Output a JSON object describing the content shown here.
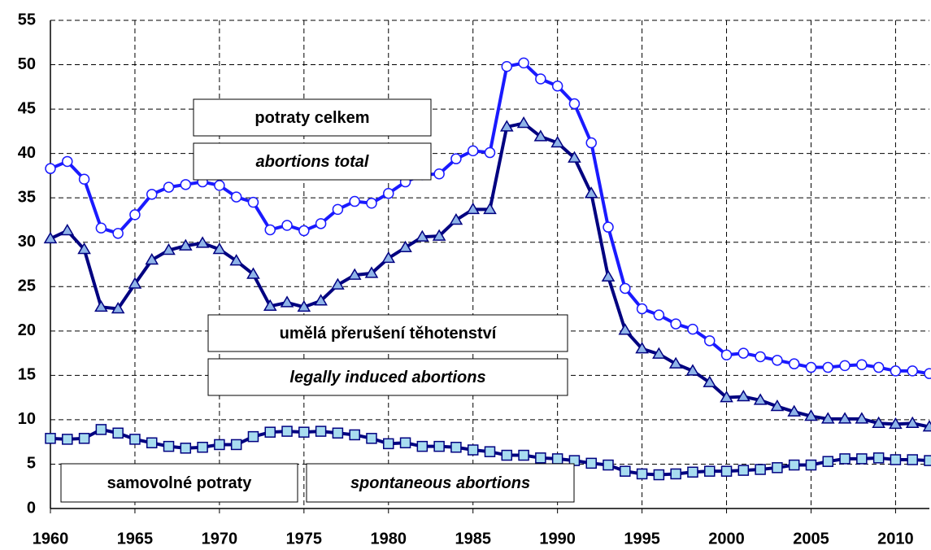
{
  "chart_data": {
    "type": "line",
    "x": [
      1960,
      1961,
      1962,
      1963,
      1964,
      1965,
      1966,
      1967,
      1968,
      1969,
      1970,
      1971,
      1972,
      1973,
      1974,
      1975,
      1976,
      1977,
      1978,
      1979,
      1980,
      1981,
      1982,
      1983,
      1984,
      1985,
      1986,
      1987,
      1988,
      1989,
      1990,
      1991,
      1992,
      1993,
      1994,
      1995,
      1996,
      1997,
      1998,
      1999,
      2000,
      2001,
      2002,
      2003,
      2004,
      2005,
      2006,
      2007,
      2008,
      2009,
      2010,
      2011,
      2012
    ],
    "xlim": [
      1960,
      2012
    ],
    "xticks": [
      1960,
      1965,
      1970,
      1975,
      1980,
      1985,
      1990,
      1995,
      2000,
      2005,
      2010
    ],
    "ylim": [
      0,
      55
    ],
    "yticks": [
      0,
      5,
      10,
      15,
      20,
      25,
      30,
      35,
      40,
      45,
      50,
      55
    ],
    "grid": true,
    "series": [
      {
        "name": "potraty celkem",
        "name_en": "abortions total",
        "color": "#1a1aff",
        "marker": "circle",
        "marker_fill": "#ffffff",
        "values": [
          38.3,
          39.1,
          37.1,
          31.6,
          31.0,
          33.1,
          35.4,
          36.2,
          36.5,
          36.8,
          36.4,
          35.1,
          34.5,
          31.4,
          31.9,
          31.3,
          32.1,
          33.7,
          34.6,
          34.4,
          35.5,
          36.8,
          37.6,
          37.7,
          39.4,
          40.3,
          40.1,
          49.8,
          50.2,
          48.4,
          47.6,
          45.6,
          41.2,
          31.7,
          24.8,
          22.5,
          21.8,
          20.8,
          20.2,
          18.9,
          17.3,
          17.5,
          17.1,
          16.7,
          16.3,
          15.9,
          15.9,
          16.1,
          16.2,
          15.9,
          15.5,
          15.5,
          15.2
        ]
      },
      {
        "name": "umělá přerušení těhotenství",
        "name_en": "legally induced abortions",
        "color": "#000080",
        "marker": "triangle",
        "marker_fill": "#8fb4e8",
        "values": [
          30.4,
          31.3,
          29.2,
          22.7,
          22.5,
          25.3,
          28.0,
          29.1,
          29.6,
          29.9,
          29.2,
          27.9,
          26.4,
          22.8,
          23.2,
          22.7,
          23.4,
          25.2,
          26.3,
          26.5,
          28.2,
          29.4,
          30.6,
          30.7,
          32.5,
          33.7,
          33.7,
          43.0,
          43.4,
          41.9,
          41.2,
          39.5,
          35.5,
          26.1,
          20.1,
          18.0,
          17.4,
          16.3,
          15.5,
          14.2,
          12.5,
          12.6,
          12.2,
          11.5,
          10.9,
          10.4,
          10.1,
          10.1,
          10.1,
          9.6,
          9.5,
          9.6,
          9.2
        ]
      },
      {
        "name": "samovolné potraty",
        "name_en": "spontaneous abortions",
        "color": "#000080",
        "marker": "square",
        "marker_fill": "#a8dcf0",
        "values": [
          7.9,
          7.8,
          7.9,
          8.9,
          8.5,
          7.8,
          7.4,
          7.0,
          6.8,
          6.9,
          7.2,
          7.2,
          8.1,
          8.6,
          8.7,
          8.6,
          8.7,
          8.5,
          8.3,
          7.9,
          7.3,
          7.4,
          7.0,
          7.0,
          6.9,
          6.6,
          6.4,
          6.0,
          6.0,
          5.7,
          5.6,
          5.4,
          5.1,
          4.9,
          4.2,
          3.9,
          3.8,
          3.9,
          4.1,
          4.2,
          4.2,
          4.3,
          4.4,
          4.6,
          4.9,
          4.9,
          5.3,
          5.6,
          5.6,
          5.7,
          5.5,
          5.5,
          5.4
        ]
      }
    ]
  }
}
